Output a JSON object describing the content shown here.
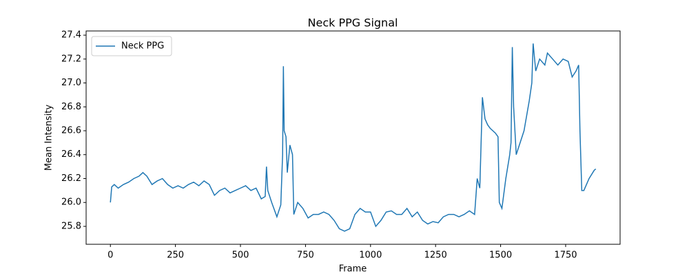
{
  "chart_data": {
    "type": "line",
    "title": "Neck PPG Signal",
    "x_label": "Frame",
    "y_label": "Mean Intensity",
    "x": [
      0,
      5,
      15,
      30,
      50,
      70,
      90,
      110,
      125,
      140,
      160,
      180,
      200,
      220,
      240,
      260,
      280,
      300,
      320,
      340,
      360,
      380,
      400,
      420,
      440,
      460,
      480,
      500,
      520,
      540,
      560,
      580,
      595,
      600,
      605,
      620,
      640,
      655,
      662,
      665,
      668,
      675,
      680,
      690,
      700,
      705,
      720,
      740,
      760,
      780,
      800,
      820,
      840,
      860,
      880,
      900,
      920,
      940,
      960,
      980,
      1000,
      1020,
      1040,
      1060,
      1080,
      1100,
      1120,
      1140,
      1160,
      1180,
      1200,
      1220,
      1240,
      1260,
      1280,
      1300,
      1320,
      1340,
      1360,
      1380,
      1400,
      1410,
      1420,
      1430,
      1440,
      1450,
      1460,
      1480,
      1490,
      1495,
      1505,
      1520,
      1535,
      1540,
      1545,
      1550,
      1560,
      1575,
      1590,
      1610,
      1620,
      1625,
      1635,
      1650,
      1670,
      1680,
      1700,
      1720,
      1740,
      1760,
      1775,
      1790,
      1800,
      1805,
      1812,
      1820,
      1840,
      1860,
      1866
    ],
    "series": [
      {
        "name": "Neck PPG",
        "color": "#1f77b4",
        "values": [
          26.0,
          26.13,
          26.15,
          26.12,
          26.15,
          26.17,
          26.2,
          26.22,
          26.25,
          26.22,
          26.15,
          26.18,
          26.2,
          26.15,
          26.12,
          26.14,
          26.12,
          26.15,
          26.17,
          26.14,
          26.18,
          26.15,
          26.06,
          26.1,
          26.12,
          26.08,
          26.1,
          26.12,
          26.14,
          26.1,
          26.12,
          26.03,
          26.05,
          26.3,
          26.1,
          26.0,
          25.88,
          25.98,
          26.4,
          27.14,
          26.6,
          26.55,
          26.25,
          26.48,
          26.4,
          25.9,
          26.0,
          25.95,
          25.87,
          25.9,
          25.9,
          25.92,
          25.9,
          25.85,
          25.78,
          25.76,
          25.78,
          25.9,
          25.95,
          25.92,
          25.92,
          25.8,
          25.85,
          25.92,
          25.93,
          25.9,
          25.9,
          25.95,
          25.88,
          25.92,
          25.85,
          25.82,
          25.84,
          25.83,
          25.88,
          25.9,
          25.9,
          25.88,
          25.9,
          25.93,
          25.9,
          26.2,
          26.12,
          26.88,
          26.7,
          26.65,
          26.62,
          26.58,
          26.55,
          26.0,
          25.95,
          26.2,
          26.4,
          26.5,
          27.3,
          26.8,
          26.4,
          26.5,
          26.6,
          26.85,
          27.0,
          27.33,
          27.1,
          27.2,
          27.15,
          27.25,
          27.2,
          27.15,
          27.2,
          27.18,
          27.05,
          27.1,
          27.15,
          26.6,
          26.1,
          26.1,
          26.2,
          26.27,
          26.28
        ]
      }
    ],
    "xlim": [
      -93.3,
      1959.3
    ],
    "xticks": [
      0,
      250,
      500,
      750,
      1000,
      1250,
      1500,
      1750
    ],
    "ylim": [
      25.65,
      27.435
    ],
    "yticks": [
      {
        "value": 25.8,
        "label": "25.8"
      },
      {
        "value": 26.0,
        "label": "26.0"
      },
      {
        "value": 26.2,
        "label": "26.2"
      },
      {
        "value": 26.4,
        "label": "26.4"
      },
      {
        "value": 26.6,
        "label": "26.6"
      },
      {
        "value": 26.8,
        "label": "26.8"
      },
      {
        "value": 27.0,
        "label": "27.0"
      },
      {
        "value": 27.2,
        "label": "27.2"
      },
      {
        "value": 27.4,
        "label": "27.4"
      }
    ],
    "legend": "upper left"
  }
}
